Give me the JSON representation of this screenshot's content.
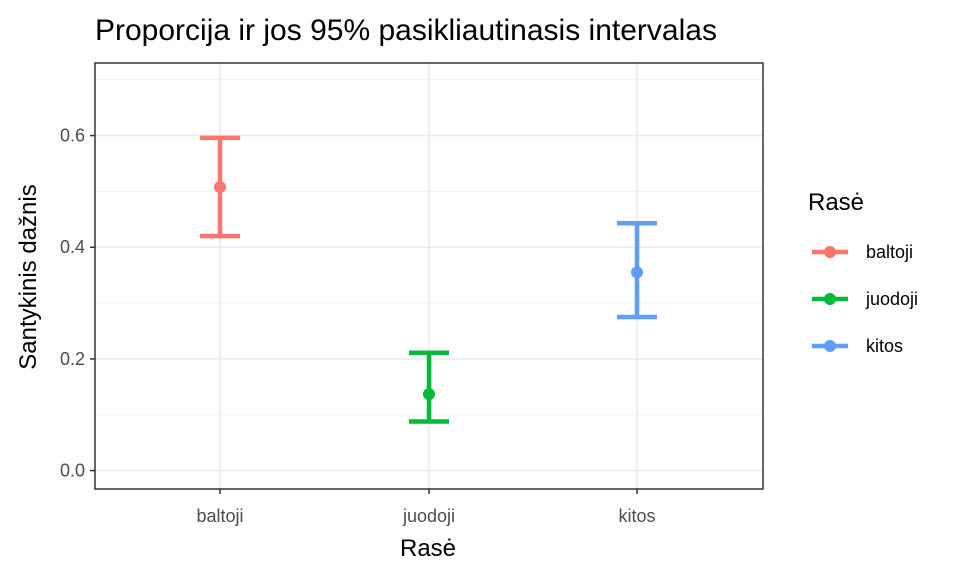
{
  "chart_data": {
    "type": "errorbar",
    "title": "Proporcija ir jos 95% pasikliautinasis intervalas",
    "xlabel": "Rasė",
    "ylabel": "Santykinis dažnis",
    "ylim": [
      -0.033,
      0.73
    ],
    "yticks": [
      "0.0",
      "0.2",
      "0.4",
      "0.6"
    ],
    "grid": true,
    "legend_position": "right",
    "legend_title": "Rasė",
    "categories": [
      "baltoji",
      "juodoji",
      "kitos"
    ],
    "series": [
      {
        "name": "baltoji",
        "value": 0.508,
        "lower": 0.42,
        "upper": 0.596,
        "color": "#F8766D"
      },
      {
        "name": "juodoji",
        "value": 0.137,
        "lower": 0.088,
        "upper": 0.211,
        "color": "#00BA38"
      },
      {
        "name": "kitos",
        "value": 0.355,
        "lower": 0.275,
        "upper": 0.443,
        "color": "#619CFF"
      }
    ]
  }
}
